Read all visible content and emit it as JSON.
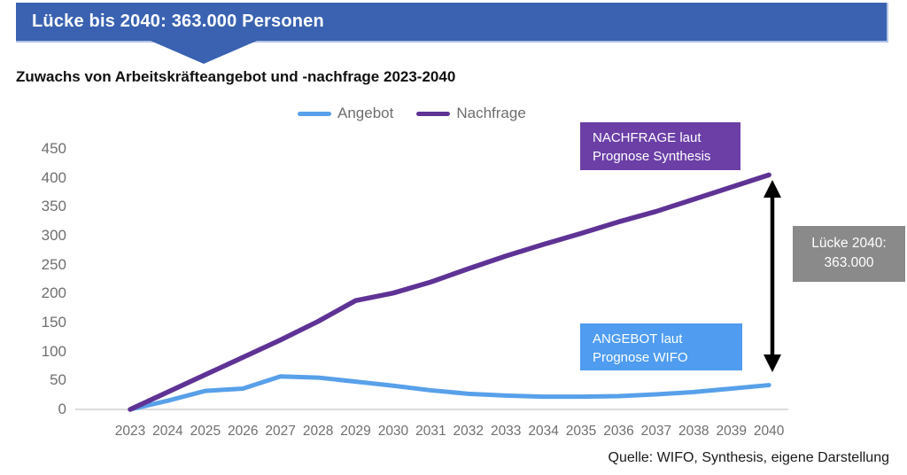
{
  "banner": {
    "text": "Lücke bis 2040: 363.000 Personen",
    "bg": "#3A62B1",
    "border": "#B3C4E8"
  },
  "subtitle": "Zuwachs von Arbeitskräfteangebot und -nachfrage 2023-2040",
  "legend": [
    {
      "label": "Angebot",
      "color": "#58A0EA"
    },
    {
      "label": "Nachfrage",
      "color": "#5F3395"
    }
  ],
  "annotations": {
    "nachfrage_box": {
      "line1": "NACHFRAGE laut",
      "line2": "Prognose Synthesis",
      "bg": "#6B3FA6"
    },
    "angebot_box": {
      "line1": "ANGEBOT laut",
      "line2": "Prognose WIFO",
      "bg": "#4F9CF0"
    },
    "gap_box": {
      "line1": "Lücke 2040:",
      "line2": "363.000",
      "bg": "#8A8A8A"
    },
    "gap_arrow_color": "#000000"
  },
  "source": "Quelle: WIFO, Synthesis, eigene Darstellung",
  "chart_data": {
    "type": "line",
    "title": "Zuwachs von Arbeitskräfteangebot und -nachfrage 2023-2040",
    "xlabel": "",
    "ylabel": "",
    "categories": [
      "2023",
      "2024",
      "2025",
      "2026",
      "2027",
      "2028",
      "2029",
      "2030",
      "2031",
      "2032",
      "2033",
      "2034",
      "2035",
      "2036",
      "2037",
      "2038",
      "2039",
      "2040"
    ],
    "series": [
      {
        "name": "Angebot",
        "color": "#58A0EA",
        "values": [
          0,
          15,
          32,
          36,
          57,
          55,
          48,
          41,
          33,
          27,
          24,
          22,
          22,
          23,
          26,
          30,
          36,
          42
        ]
      },
      {
        "name": "Nachfrage",
        "color": "#5F3395",
        "values": [
          0,
          30,
          60,
          90,
          120,
          152,
          188,
          201,
          220,
          243,
          265,
          285,
          304,
          324,
          342,
          363,
          384,
          405
        ]
      }
    ],
    "yticks": [
      0,
      50,
      100,
      150,
      200,
      250,
      300,
      350,
      400,
      450
    ],
    "ylim": [
      0,
      450
    ],
    "grid": false,
    "legend_position": "top",
    "axis_color": "#DCDCDC",
    "gap_2040": 363
  }
}
